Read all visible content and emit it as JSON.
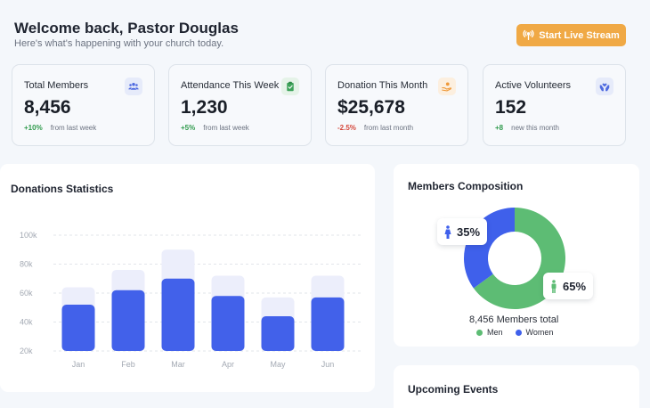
{
  "header": {
    "title": "Welcome back, Pastor Douglas",
    "subtitle": "Here's what's happening with your church today.",
    "stream_button": "Start Live Stream"
  },
  "stats": [
    {
      "label": "Total Members",
      "value": "8,456",
      "delta": "+10%",
      "note": "from last week",
      "icon": "members-icon",
      "icon_bg": "#e6ebfa",
      "icon_color": "#4e6ae0"
    },
    {
      "label": "Attendance This Week",
      "value": "1,230",
      "delta": "+5%",
      "note": "from last week",
      "icon": "clipboard-icon",
      "icon_bg": "#e5f3e8",
      "icon_color": "#3ea35a"
    },
    {
      "label": "Donation This Month",
      "value": "$25,678",
      "delta": "-2.5%",
      "note": "from last month",
      "icon": "donation-icon",
      "icon_bg": "#fcefdf",
      "icon_color": "#ef9a3b"
    },
    {
      "label": "Active Volunteers",
      "value": "152",
      "delta": "+8",
      "note": "new this month",
      "icon": "hands-icon",
      "icon_bg": "#e6ebfa",
      "icon_color": "#4e6ae0"
    }
  ],
  "donations": {
    "title": "Donations Statistics"
  },
  "chart_data": {
    "type": "bar",
    "categories": [
      "Jan",
      "Feb",
      "Mar",
      "Apr",
      "May",
      "Jun"
    ],
    "series": [
      {
        "values": [
          64,
          76,
          90,
          72,
          57,
          72
        ],
        "color": "#eceefb"
      },
      {
        "values": [
          52,
          62,
          70,
          58,
          44,
          57
        ],
        "color": "#4261ea"
      }
    ],
    "yticks": [
      "100k",
      "80k",
      "60k",
      "40k",
      "20k"
    ],
    "ylim": [
      20,
      100
    ],
    "grid": true
  },
  "composition": {
    "title": "Members Composition",
    "women_pct": "35%",
    "men_pct": "65%",
    "women_value": 35,
    "men_value": 65,
    "total_text": "8,456 Members total",
    "legend_men": "Men",
    "legend_women": "Women",
    "men_color": "#5dbc74",
    "women_color": "#3f60eb"
  },
  "events": {
    "title": "Upcoming Events"
  }
}
